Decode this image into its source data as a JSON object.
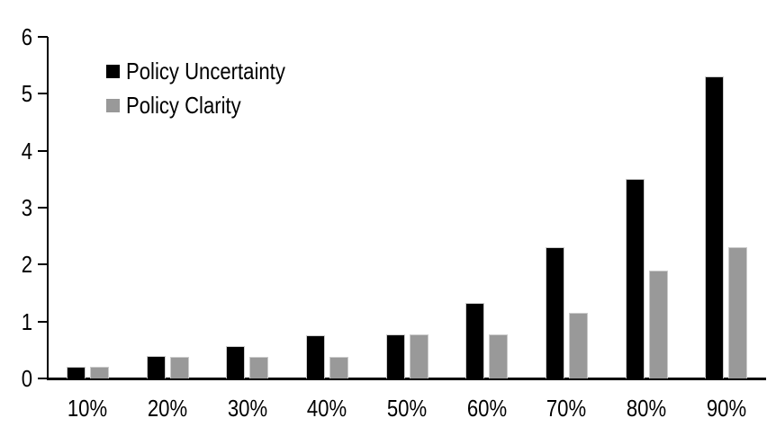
{
  "chart_data": {
    "type": "bar",
    "title": "",
    "xlabel": "",
    "ylabel": "",
    "categories": [
      "10%",
      "20%",
      "30%",
      "40%",
      "50%",
      "60%",
      "70%",
      "80%",
      "90%"
    ],
    "series": [
      {
        "name": "Policy Uncertainty",
        "color": "#000000",
        "values": [
          0.2,
          0.4,
          0.57,
          0.76,
          0.78,
          1.33,
          2.3,
          3.5,
          5.3
        ]
      },
      {
        "name": "Policy Clarity",
        "color": "#999999",
        "values": [
          0.2,
          0.38,
          0.38,
          0.38,
          0.77,
          0.77,
          1.15,
          1.9,
          2.3
        ]
      }
    ],
    "ylim": [
      0,
      6
    ],
    "yticks": [
      0,
      1,
      2,
      3,
      4,
      5,
      6
    ],
    "grid": false,
    "legend_position": "inside-top-left",
    "colors": {
      "axis": "#000000",
      "background": "#ffffff"
    }
  }
}
